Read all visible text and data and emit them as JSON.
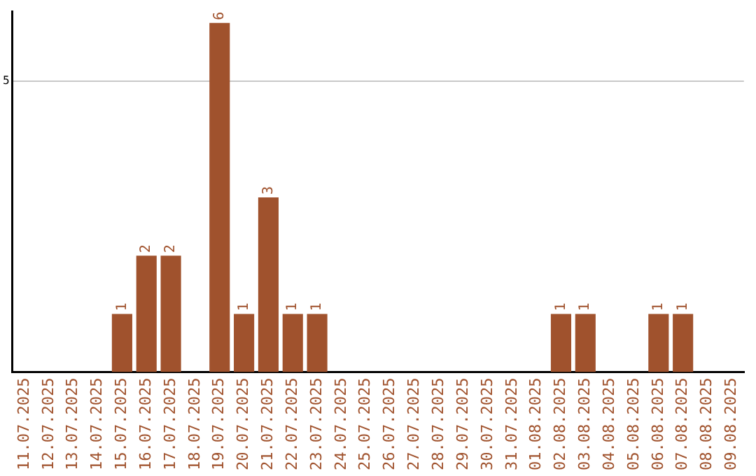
{
  "chart_data": {
    "type": "bar",
    "categories": [
      "11.07.2025",
      "12.07.2025",
      "13.07.2025",
      "14.07.2025",
      "15.07.2025",
      "16.07.2025",
      "17.07.2025",
      "18.07.2025",
      "19.07.2025",
      "20.07.2025",
      "21.07.2025",
      "22.07.2025",
      "23.07.2025",
      "24.07.2025",
      "25.07.2025",
      "26.07.2025",
      "27.07.2025",
      "28.07.2025",
      "29.07.2025",
      "30.07.2025",
      "31.07.2025",
      "01.08.2025",
      "02.08.2025",
      "03.08.2025",
      "04.08.2025",
      "05.08.2025",
      "06.08.2025",
      "07.08.2025",
      "08.08.2025",
      "09.08.2025"
    ],
    "values": [
      0,
      0,
      0,
      0,
      1,
      2,
      2,
      0,
      6,
      1,
      3,
      1,
      1,
      0,
      0,
      0,
      0,
      0,
      0,
      0,
      0,
      0,
      1,
      1,
      0,
      0,
      1,
      1,
      0,
      0
    ],
    "value_labels": [
      null,
      null,
      null,
      null,
      "1",
      "2",
      "2",
      null,
      "6",
      "1",
      "3",
      "1",
      "1",
      null,
      null,
      null,
      null,
      null,
      null,
      null,
      null,
      null,
      "1",
      "1",
      null,
      null,
      "1",
      "1",
      null,
      null
    ],
    "color": "#a0522d",
    "ylim": [
      0,
      6.2
    ],
    "yticks": [
      5
    ],
    "grid": "y",
    "legend": false
  }
}
